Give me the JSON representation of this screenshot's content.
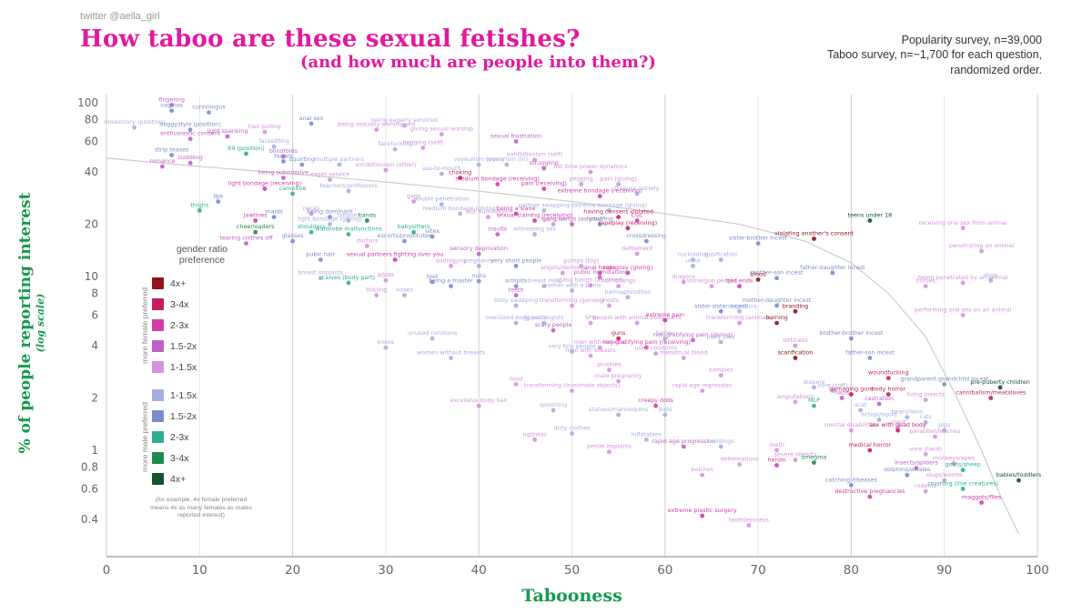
{
  "page": {
    "credit": "twitter @aella_girl",
    "title": "How taboo are these sexual fetishes?",
    "subtitle": "(and how much are people into them?)",
    "note_line1": "Popularity survey, n=39,000",
    "note_line2": "Taboo survey, n=~1,700  for each question,",
    "note_line3": "randomized order."
  },
  "chart_data": {
    "type": "scatter",
    "title": "How taboo are these sexual fetishes? (and how much are people into them?)",
    "xlabel": "Tabooness",
    "ylabel": "% of people reporting interest",
    "ylabel_sub": "(log scale)",
    "xlim": [
      0,
      100
    ],
    "ylim": [
      0.3,
      100
    ],
    "y_scale": "log",
    "grid": "vertical-only",
    "x_ticks": [
      0,
      10,
      20,
      30,
      40,
      50,
      60,
      70,
      80,
      90,
      100
    ],
    "y_ticks": [
      100,
      80,
      60,
      40,
      20,
      10,
      8,
      6,
      4,
      2,
      1,
      0.8,
      0.6,
      0.4
    ],
    "legend": {
      "title": "gender ratio preference",
      "female_label": "more female preferred",
      "male_label": "more male preferred",
      "footnote": "(for example, 4x female preferred means 4x as many females as males reported interest)",
      "items": [
        {
          "label": "4x+",
          "color": "#8f1319"
        },
        {
          "label": "3-4x",
          "color": "#c51f5d"
        },
        {
          "label": "2-3x",
          "color": "#d13da8"
        },
        {
          "label": "1.5-2x",
          "color": "#bf62c6"
        },
        {
          "label": "1-1.5x",
          "color": "#d392dc"
        },
        {
          "label": "1-1.5x",
          "color": "#a6aede"
        },
        {
          "label": "1.5-2x",
          "color": "#7b8ccb"
        },
        {
          "label": "2-3x",
          "color": "#2fae93"
        },
        {
          "label": "3-4x",
          "color": "#1f8a50"
        },
        {
          "label": "4x+",
          "color": "#14532d"
        }
      ]
    },
    "trend_curve": [
      [
        0,
        48
      ],
      [
        10,
        43
      ],
      [
        20,
        39
      ],
      [
        30,
        35
      ],
      [
        40,
        31
      ],
      [
        50,
        27
      ],
      [
        60,
        23
      ],
      [
        68,
        20
      ],
      [
        75,
        16
      ],
      [
        80,
        12
      ],
      [
        84,
        8
      ],
      [
        88,
        4.5
      ],
      [
        91,
        2.2
      ],
      [
        94,
        1.0
      ],
      [
        96,
        0.55
      ],
      [
        98,
        0.33
      ]
    ],
    "point_format": [
      "tabooness",
      "percent_interested",
      "label",
      "color_index"
    ],
    "points": [
      [
        7,
        97,
        "fingering",
        3
      ],
      [
        7,
        90,
        "vaginas",
        6
      ],
      [
        11,
        88,
        "cunnilingus",
        6
      ],
      [
        3,
        72,
        "missionary (position)",
        5
      ],
      [
        9,
        70,
        "doggystyle (position)",
        6
      ],
      [
        9,
        62,
        "enthusiastic consent",
        3
      ],
      [
        13,
        64,
        "light spanking",
        3
      ],
      [
        17,
        68,
        "hair pulling",
        4
      ],
      [
        22,
        76,
        "anal sex",
        6
      ],
      [
        29,
        70,
        "being sexually worshipped",
        4
      ],
      [
        32,
        74,
        "being eagerly serviced",
        5
      ],
      [
        36,
        66,
        "giving sexual worship",
        4
      ],
      [
        44,
        60,
        "sexual frustration",
        3
      ],
      [
        7,
        50,
        "strip teases",
        6
      ],
      [
        6,
        43,
        "romance",
        3
      ],
      [
        9,
        45,
        "cuddling",
        3
      ],
      [
        15,
        51,
        "69 (position)",
        7
      ],
      [
        18,
        56,
        "facesitting",
        5
      ],
      [
        19,
        49,
        "blindfolds",
        3
      ],
      [
        19,
        46,
        "facials",
        6
      ],
      [
        21,
        44,
        "squirting",
        6
      ],
      [
        25,
        44,
        "multiple partners",
        5
      ],
      [
        30,
        41,
        "exhibitionism (other)",
        4
      ],
      [
        31,
        54,
        "facefucking",
        5
      ],
      [
        34,
        55,
        "begging (self)",
        4
      ],
      [
        40,
        44,
        "voyeurism (porn)",
        5
      ],
      [
        43,
        44,
        "voyeurism (irl)",
        5
      ],
      [
        46,
        47,
        "exhibitionism (self)",
        4
      ],
      [
        47,
        42,
        "struggling",
        3
      ],
      [
        52,
        40,
        "full time power dynamics",
        4
      ],
      [
        36,
        39,
        "ass-to-mouth",
        5
      ],
      [
        38,
        37,
        "choking",
        1
      ],
      [
        19,
        37,
        "being submissive",
        3
      ],
      [
        17,
        32,
        "light bondage (receiving)",
        2
      ],
      [
        20,
        30,
        "cameltoe",
        7
      ],
      [
        24,
        36,
        "eager service",
        4
      ],
      [
        26,
        31,
        "teachers/professors",
        5
      ],
      [
        42,
        34,
        "medium bondage (receiving)",
        2
      ],
      [
        47,
        32,
        "pain (receiving)",
        2
      ],
      [
        51,
        34,
        "pegging",
        4
      ],
      [
        55,
        34,
        "pain (giving)",
        4
      ],
      [
        53,
        29,
        "extreme bondage (receiving)",
        2
      ],
      [
        54,
        24,
        "extreme bondage (giving)",
        5
      ],
      [
        57,
        30,
        "freeuse society",
        5
      ],
      [
        33,
        27,
        "gags",
        4
      ],
      [
        36,
        26,
        "double penetration",
        5
      ],
      [
        38,
        23,
        "medium bondage (giving)",
        5
      ],
      [
        41,
        22,
        "slut humiliation",
        4
      ],
      [
        44,
        23,
        "being a slave",
        2
      ],
      [
        47,
        24,
        "partner swapping",
        5
      ],
      [
        46,
        21,
        "sexual training (receiving)",
        2
      ],
      [
        48,
        20,
        "hypnosis",
        4
      ],
      [
        50,
        20,
        "gang bangs (as you)",
        3
      ],
      [
        53,
        20,
        "hotwifing",
        6
      ],
      [
        56,
        19,
        "rapeplay (receiving)",
        1
      ],
      [
        57,
        21,
        "CGL",
        2
      ],
      [
        55,
        22,
        "having consent violated",
        1
      ],
      [
        82,
        21,
        "teens under 18",
        9
      ],
      [
        92,
        19,
        "receiving oral sex from animal",
        4
      ],
      [
        94,
        14,
        "penetrating an animal",
        4
      ],
      [
        92,
        9.2,
        "being penetrated by an animal",
        4
      ],
      [
        92,
        6,
        "performing oral sex on an animal",
        4
      ],
      [
        12,
        27,
        "lips",
        6
      ],
      [
        10,
        24,
        "thighs",
        7
      ],
      [
        16,
        21,
        "jawlines",
        2
      ],
      [
        18,
        22,
        "maids",
        6
      ],
      [
        22,
        23,
        "necks",
        4
      ],
      [
        24,
        22,
        "being dominant",
        6
      ],
      [
        26,
        21,
        "tongues",
        5
      ],
      [
        24,
        20,
        "light bondage (giving)",
        5
      ],
      [
        28,
        21,
        "hands",
        8
      ],
      [
        16,
        18,
        "cheerleaders",
        8
      ],
      [
        22,
        18,
        "shoulders",
        7
      ],
      [
        26,
        17.5,
        "wardrobe malfunctions",
        7
      ],
      [
        20,
        16,
        "glasses",
        6
      ],
      [
        15,
        15.5,
        "tearing clothes off",
        3
      ],
      [
        28,
        15,
        "doctors",
        4
      ],
      [
        33,
        18,
        "babysitters",
        7
      ],
      [
        32,
        16,
        "escorts/prostitutes",
        6
      ],
      [
        35,
        17,
        "latex",
        6
      ],
      [
        42,
        17.5,
        "insults",
        3
      ],
      [
        46,
        17.5,
        "witnessing sex",
        5
      ],
      [
        58,
        16,
        "crossdressing",
        6
      ],
      [
        70,
        15.5,
        "sister-brother incest",
        6
      ],
      [
        76,
        16.5,
        "violating another's consent",
        0
      ],
      [
        23,
        12.5,
        "pubic hair",
        6
      ],
      [
        31,
        12.5,
        "sexual partners fighting over you",
        2
      ],
      [
        37,
        11.5,
        "androgyny",
        4
      ],
      [
        40,
        13.5,
        "sensory deprivation",
        3
      ],
      [
        40,
        11.5,
        "pregnancy",
        5
      ],
      [
        44,
        11.5,
        "very short people",
        6
      ],
      [
        51,
        11.5,
        "pumps (toy)",
        4
      ],
      [
        49,
        10.5,
        "angels/demons",
        4
      ],
      [
        53,
        10.5,
        "anal hooks",
        2
      ],
      [
        56,
        10.5,
        "rapeplay (giving)",
        2
      ],
      [
        63,
        11.5,
        "urine",
        5
      ],
      [
        63,
        12.5,
        "cuckolding",
        5
      ],
      [
        57,
        13.5,
        "defilement",
        4
      ],
      [
        66,
        12.5,
        "sissification",
        5
      ],
      [
        78,
        10.5,
        "father-daughter incest",
        6
      ],
      [
        23,
        9.8,
        "breast implants",
        5
      ],
      [
        26,
        9.2,
        "calves (body part)",
        7
      ],
      [
        30,
        9.5,
        "ASMR",
        4
      ],
      [
        29,
        7.8,
        "tickling",
        4
      ],
      [
        32,
        7.8,
        "noses",
        5
      ],
      [
        35,
        9.3,
        "feet",
        6
      ],
      [
        37,
        8.8,
        "being a master",
        6
      ],
      [
        40,
        9.4,
        "nuns",
        6
      ],
      [
        44,
        8.8,
        "armpits",
        6
      ],
      [
        47,
        8.8,
        "breast milk",
        5
      ],
      [
        44,
        7.8,
        "teeth",
        3
      ],
      [
        50,
        8.3,
        "woman with a penis",
        5
      ],
      [
        53,
        9.9,
        "public humiliation",
        3
      ],
      [
        52,
        8.9,
        "gang bangs (as other)",
        4
      ],
      [
        55,
        8.8,
        "horns/fangs",
        4
      ],
      [
        62,
        9.3,
        "dragons",
        4
      ],
      [
        65,
        8.8,
        "slime/goo people",
        4
      ],
      [
        68,
        8.8,
        "bad ends",
        2
      ],
      [
        70,
        9.6,
        "blood",
        0
      ],
      [
        72,
        9.8,
        "mother-son incest",
        6
      ],
      [
        88,
        8.8,
        "horses",
        4
      ],
      [
        95,
        9.5,
        "dogs",
        5
      ],
      [
        44,
        6.8,
        "body swapping",
        5
      ],
      [
        50,
        6.8,
        "transforming (gender)",
        4
      ],
      [
        54,
        6.8,
        "ghosts",
        4
      ],
      [
        56,
        7.6,
        "hermaphrodites",
        5
      ],
      [
        66,
        6.3,
        "sister-sister incest",
        6
      ],
      [
        68,
        6.3,
        "orcs/goblins",
        5
      ],
      [
        72,
        6.8,
        "mother-daughter incest",
        6
      ],
      [
        74,
        6.3,
        "branding",
        0
      ],
      [
        44,
        5.4,
        "oversized body parts",
        5
      ],
      [
        47,
        5.4,
        "gynecologists",
        5
      ],
      [
        48,
        4.9,
        "scary people",
        3
      ],
      [
        52,
        5.4,
        "SPH",
        4
      ],
      [
        57,
        5.4,
        "people with animal body parts",
        4
      ],
      [
        60,
        5.6,
        "extreme pain",
        2
      ],
      [
        68,
        5.4,
        "transforming (animals)",
        4
      ],
      [
        72,
        5.4,
        "burning",
        0
      ],
      [
        35,
        4.4,
        "unused condoms",
        5
      ],
      [
        30,
        3.9,
        "knees",
        5
      ],
      [
        55,
        4.4,
        "guns",
        1
      ],
      [
        53,
        3.9,
        "men with vaginas",
        4
      ],
      [
        60,
        4.4,
        "furries",
        5
      ],
      [
        58,
        3.9,
        "non-gratifying pain (receiving)",
        2
      ],
      [
        63,
        4.3,
        "non-gratifying pain (giving)",
        3
      ],
      [
        66,
        4.2,
        "pony play",
        5
      ],
      [
        74,
        4,
        "dirtiness",
        4
      ],
      [
        80,
        4.4,
        "brother-brother incest",
        6
      ],
      [
        37,
        3.4,
        "women without breasts",
        5
      ],
      [
        50,
        3.7,
        "very tiny people",
        5
      ],
      [
        52,
        3.5,
        "men with breasts",
        4
      ],
      [
        59,
        3.6,
        "used condoms",
        4
      ],
      [
        62,
        3.4,
        "menstrual blood",
        4
      ],
      [
        74,
        3.4,
        "scarification",
        0
      ],
      [
        82,
        3.4,
        "father-son incest",
        6
      ],
      [
        54,
        2.9,
        "plushies",
        4
      ],
      [
        66,
        2.7,
        "zombies",
        4
      ],
      [
        84,
        2.6,
        "woundfucking",
        1
      ],
      [
        90,
        2.4,
        "grandparent-grandchild incest",
        6
      ],
      [
        96,
        2.3,
        "pre-puberty children",
        9
      ],
      [
        95,
        2,
        "cannibalism/meatslaves",
        1
      ],
      [
        44,
        2.4,
        "food",
        4
      ],
      [
        50,
        2.2,
        "transforming (inanimate objects)",
        4
      ],
      [
        55,
        2.5,
        "male pregnancy",
        4
      ],
      [
        59,
        1.8,
        "creepy dolls",
        2
      ],
      [
        64,
        2.2,
        "rapid age regression",
        4
      ],
      [
        76,
        2.3,
        "diapers",
        5
      ],
      [
        78,
        2.2,
        "vore (soft)",
        5
      ],
      [
        80,
        2.1,
        "damaging gore",
        1
      ],
      [
        84,
        2.1,
        "body horror",
        1
      ],
      [
        79,
        2,
        "nazis",
        3
      ],
      [
        74,
        1.9,
        "amputations",
        4
      ],
      [
        76,
        1.8,
        "MLP",
        7
      ],
      [
        83,
        1.85,
        "castration",
        3
      ],
      [
        81,
        1.7,
        "scat",
        5
      ],
      [
        88,
        1.95,
        "living insects",
        4
      ],
      [
        40,
        1.8,
        "excessive body hair",
        4
      ],
      [
        48,
        1.7,
        "sploshing",
        5
      ],
      [
        55,
        1.6,
        "statues/mannequins",
        5
      ],
      [
        60,
        1.6,
        "dolls",
        5
      ],
      [
        86,
        1.55,
        "bears/lions",
        5
      ],
      [
        83,
        1.5,
        "octopi/squid",
        5
      ],
      [
        85,
        1.35,
        "vomit",
        4
      ],
      [
        80,
        1.3,
        "mental disabilities",
        4
      ],
      [
        88,
        1.45,
        "cats",
        5
      ],
      [
        46,
        1.15,
        "ugliness",
        4
      ],
      [
        50,
        1.25,
        "dirty clothes",
        5
      ],
      [
        58,
        1.15,
        "inflatables",
        5
      ],
      [
        62,
        1.05,
        "rapid age progression",
        3
      ],
      [
        66,
        1.05,
        "buildings",
        5
      ],
      [
        85,
        1.3,
        "sex with dead body",
        1
      ],
      [
        89,
        1.2,
        "parasites/leeches",
        4
      ],
      [
        90,
        1.3,
        "pigs",
        5
      ],
      [
        54,
        0.98,
        "penile implants",
        4
      ],
      [
        72,
        1,
        "meth",
        4
      ],
      [
        74,
        0.88,
        "severe obesity",
        4
      ],
      [
        76,
        0.85,
        "smegma",
        8
      ],
      [
        82,
        1,
        "medical horror",
        1
      ],
      [
        88,
        0.95,
        "vore (hard)",
        4
      ],
      [
        64,
        0.72,
        "belches",
        4
      ],
      [
        68,
        0.83,
        "deformations",
        4
      ],
      [
        72,
        0.82,
        "heroin",
        2
      ],
      [
        91,
        0.84,
        "monkeys/apes",
        4
      ],
      [
        92,
        0.77,
        "goats/sheep",
        7
      ],
      [
        87,
        0.79,
        "insects/spiders",
        3
      ],
      [
        86,
        0.72,
        "dolphins/whales",
        6
      ],
      [
        90,
        0.67,
        "slugs/worms",
        4
      ],
      [
        98,
        0.67,
        "babies/toddlers",
        9
      ],
      [
        80,
        0.63,
        "catching diseases",
        6
      ],
      [
        88,
        0.58,
        "rodents",
        4
      ],
      [
        92,
        0.6,
        "crushing (live creatures)",
        7
      ],
      [
        82,
        0.54,
        "destructive pregnancies",
        2
      ],
      [
        64,
        0.42,
        "extreme plastic surgery",
        2
      ],
      [
        94,
        0.5,
        "maggots/flies",
        2
      ],
      [
        69,
        0.37,
        "toothlessness",
        4
      ]
    ]
  }
}
